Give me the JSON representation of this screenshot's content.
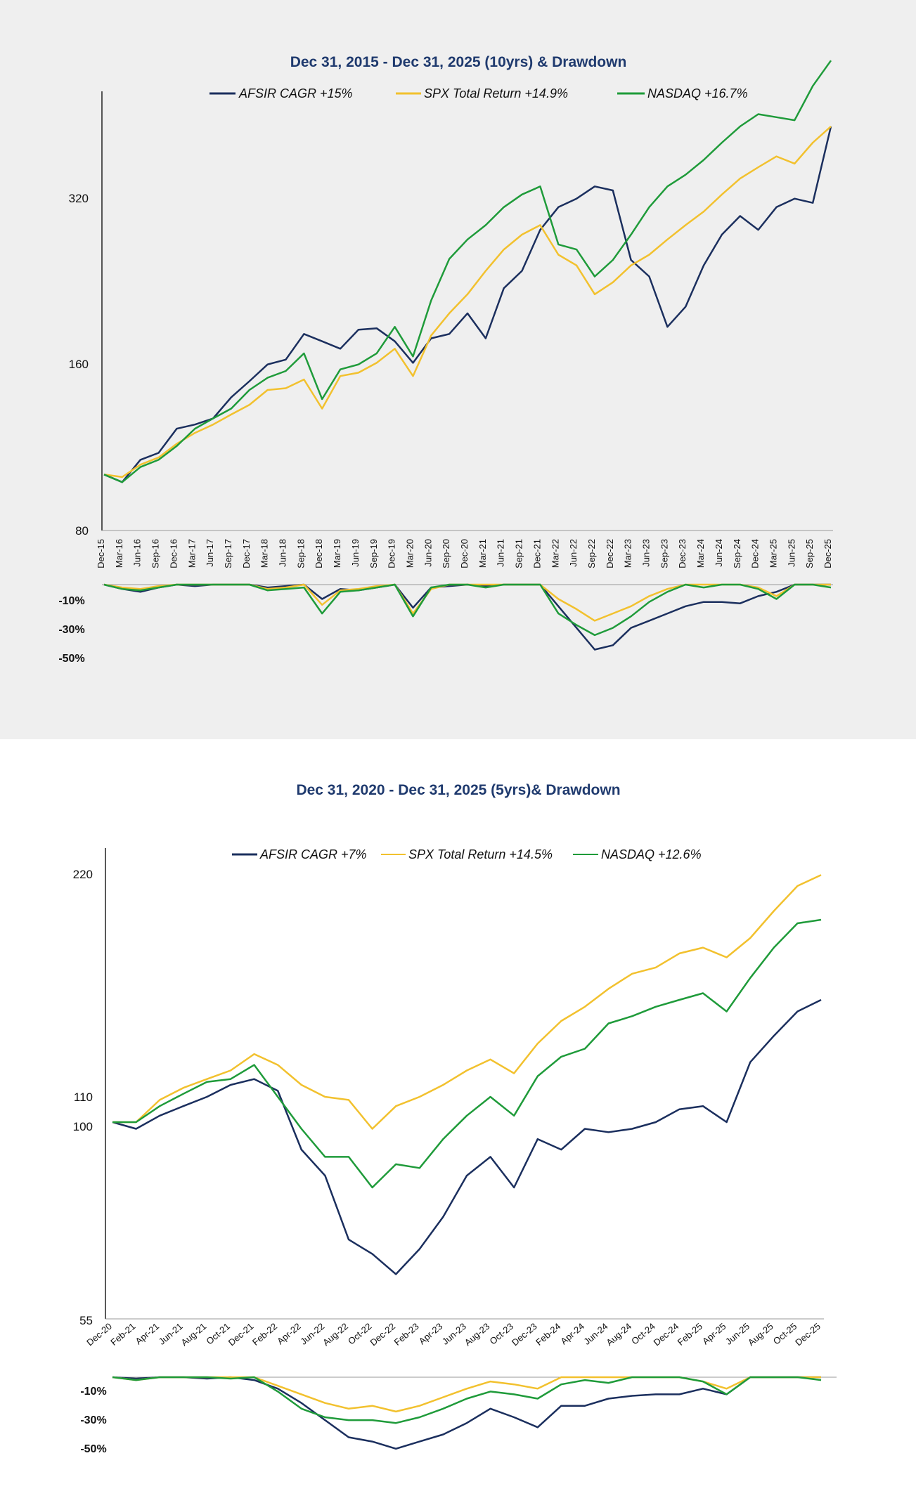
{
  "colors": {
    "afsir": "#1b2f5e",
    "spx": "#f2c12e",
    "nasdaq": "#1f9b3a",
    "title": "#1f3a6e"
  },
  "chart_data": [
    {
      "type": "line",
      "title": "Dec 31, 2015 - Dec 31, 2025 (10yrs) & Drawdown",
      "legend": [
        "AFSIR  CAGR +15%",
        "SPX Total Return +14.9%",
        "NASDAQ +16.7%"
      ],
      "yticks": [
        "320",
        "160",
        "80"
      ],
      "ylim": [
        80,
        460
      ],
      "yscale": "log",
      "xticks": [
        "Dec-15",
        "Mar-16",
        "Jun-16",
        "Sep-16",
        "Dec-16",
        "Mar-17",
        "Jun-17",
        "Sep-17",
        "Dec-17",
        "Mar-18",
        "Jun-18",
        "Sep-18",
        "Dec-18",
        "Mar-19",
        "Jun-19",
        "Sep-19",
        "Dec-19",
        "Mar-20",
        "Jun-20",
        "Sep-20",
        "Dec-20",
        "Mar-21",
        "Jun-21",
        "Sep-21",
        "Dec-21",
        "Mar-22",
        "Jun-22",
        "Sep-22",
        "Dec-22",
        "Mar-23",
        "Jun-23",
        "Sep-23",
        "Dec-23",
        "Mar-24",
        "Jun-24",
        "Sep-24",
        "Dec-24",
        "Mar-25",
        "Jun-25",
        "Sep-25",
        "Dec-25"
      ],
      "series": [
        {
          "name": "AFSIR",
          "values": [
            100,
            97,
            106,
            109,
            120,
            122,
            125,
            136,
            145,
            155,
            158,
            175,
            170,
            165,
            178,
            179,
            170,
            156,
            172,
            175,
            190,
            172,
            210,
            225,
            265,
            290,
            300,
            315,
            310,
            235,
            220,
            180,
            195,
            230,
            260,
            280,
            265,
            290,
            300,
            295,
            400
          ]
        },
        {
          "name": "SPX",
          "values": [
            100,
            99,
            104,
            107,
            113,
            118,
            122,
            127,
            132,
            140,
            141,
            146,
            130,
            148,
            150,
            156,
            165,
            148,
            174,
            190,
            205,
            225,
            245,
            260,
            270,
            240,
            230,
            205,
            215,
            230,
            240,
            255,
            270,
            285,
            305,
            325,
            340,
            355,
            345,
            375,
            400
          ]
        },
        {
          "name": "NASDAQ",
          "values": [
            100,
            97,
            103,
            106,
            112,
            120,
            125,
            130,
            140,
            147,
            151,
            162,
            135,
            152,
            155,
            162,
            180,
            160,
            200,
            236,
            255,
            270,
            290,
            305,
            315,
            250,
            245,
            220,
            235,
            260,
            290,
            315,
            330,
            350,
            375,
            400,
            420,
            415,
            410,
            470,
            520
          ]
        }
      ],
      "drawdown": {
        "yticks": [
          "-10%",
          "-30%",
          "-50%"
        ],
        "ylim": [
          -55,
          0
        ],
        "series": [
          {
            "name": "AFSIR",
            "values": [
              0,
              -3,
              -5,
              -2,
              0,
              -1,
              0,
              0,
              0,
              -2,
              -1,
              0,
              -10,
              -3,
              -4,
              -2,
              0,
              -16,
              -2,
              -1,
              0,
              -1,
              0,
              0,
              0,
              -15,
              -30,
              -45,
              -42,
              -30,
              -25,
              -20,
              -15,
              -12,
              -12,
              -13,
              -8,
              -5,
              0,
              0,
              0
            ]
          },
          {
            "name": "SPX",
            "values": [
              0,
              -2,
              -3,
              -1,
              0,
              0,
              0,
              0,
              0,
              -3,
              -2,
              0,
              -14,
              -4,
              -3,
              -1,
              0,
              -20,
              -3,
              0,
              0,
              0,
              0,
              0,
              0,
              -10,
              -17,
              -25,
              -20,
              -15,
              -8,
              -3,
              0,
              0,
              0,
              0,
              -2,
              -8,
              0,
              0,
              0
            ]
          },
          {
            "name": "NASDAQ",
            "values": [
              0,
              -3,
              -4,
              -2,
              0,
              0,
              0,
              0,
              0,
              -4,
              -3,
              -2,
              -20,
              -5,
              -4,
              -2,
              0,
              -22,
              -2,
              0,
              0,
              -2,
              0,
              0,
              0,
              -20,
              -28,
              -35,
              -30,
              -22,
              -12,
              -5,
              0,
              -2,
              0,
              0,
              -3,
              -10,
              0,
              0,
              -2
            ]
          }
        ]
      }
    },
    {
      "type": "line",
      "title": "Dec 31, 2020 - Dec 31, 2025  (5yrs)& Drawdown",
      "legend": [
        "AFSIR CAGR +7%",
        "SPX Total Return +14.5%",
        "NASDAQ +12.6%"
      ],
      "yticks": [
        "220",
        "110",
        "100",
        "55"
      ],
      "ylim": [
        55,
        230
      ],
      "yscale": "log",
      "xticks": [
        "Dec-20",
        "Feb-21",
        "Apr-21",
        "Jun-21",
        "Aug-21",
        "Oct-21",
        "Dec-21",
        "Feb-22",
        "Apr-22",
        "Jun-22",
        "Aug-22",
        "Oct-22",
        "Dec-22",
        "Feb-23",
        "Apr-23",
        "Jun-23",
        "Aug-23",
        "Oct-23",
        "Dec-23",
        "Feb-24",
        "Apr-24",
        "Jun-24",
        "Aug-24",
        "Oct-24",
        "Dec-24",
        "Feb-25",
        "Apr-25",
        "Jun-25",
        "Aug-25",
        "Oct-25",
        "Dec-25"
      ],
      "series": [
        {
          "name": "AFSIR",
          "values": [
            100,
            98,
            102,
            105,
            108,
            112,
            114,
            110,
            92,
            85,
            70,
            67,
            63,
            68,
            75,
            85,
            90,
            82,
            95,
            92,
            98,
            97,
            98,
            100,
            104,
            105,
            100,
            120,
            130,
            140,
            145
          ]
        },
        {
          "name": "SPX",
          "values": [
            100,
            100,
            107,
            111,
            114,
            117,
            123,
            119,
            112,
            108,
            107,
            98,
            105,
            108,
            112,
            117,
            121,
            116,
            127,
            136,
            142,
            150,
            157,
            160,
            167,
            170,
            165,
            175,
            190,
            205,
            212
          ]
        },
        {
          "name": "NASDAQ",
          "values": [
            100,
            100,
            105,
            109,
            113,
            114,
            119,
            108,
            98,
            90,
            90,
            82,
            88,
            87,
            95,
            102,
            108,
            102,
            115,
            122,
            125,
            135,
            138,
            142,
            145,
            148,
            140,
            155,
            170,
            183,
            185
          ]
        }
      ],
      "drawdown": {
        "yticks": [
          "-10%",
          "-30%",
          "-50%"
        ],
        "ylim": [
          -55,
          0
        ],
        "series": [
          {
            "name": "AFSIR",
            "values": [
              0,
              -1,
              0,
              0,
              -1,
              0,
              -2,
              -8,
              -18,
              -30,
              -42,
              -45,
              -50,
              -45,
              -40,
              -32,
              -22,
              -28,
              -35,
              -20,
              -20,
              -15,
              -13,
              -12,
              -12,
              -8,
              -12,
              0,
              0,
              0,
              0
            ]
          },
          {
            "name": "SPX",
            "values": [
              0,
              -2,
              0,
              0,
              0,
              0,
              0,
              -6,
              -12,
              -18,
              -22,
              -20,
              -24,
              -20,
              -14,
              -8,
              -3,
              -5,
              -8,
              0,
              0,
              0,
              0,
              0,
              0,
              -3,
              -8,
              0,
              0,
              0,
              0
            ]
          },
          {
            "name": "NASDAQ",
            "values": [
              0,
              -2,
              0,
              0,
              0,
              -1,
              0,
              -10,
              -22,
              -28,
              -30,
              -30,
              -32,
              -28,
              -22,
              -15,
              -10,
              -12,
              -15,
              -5,
              -2,
              -4,
              0,
              0,
              0,
              -3,
              -12,
              0,
              0,
              0,
              -2
            ]
          }
        ]
      }
    }
  ]
}
